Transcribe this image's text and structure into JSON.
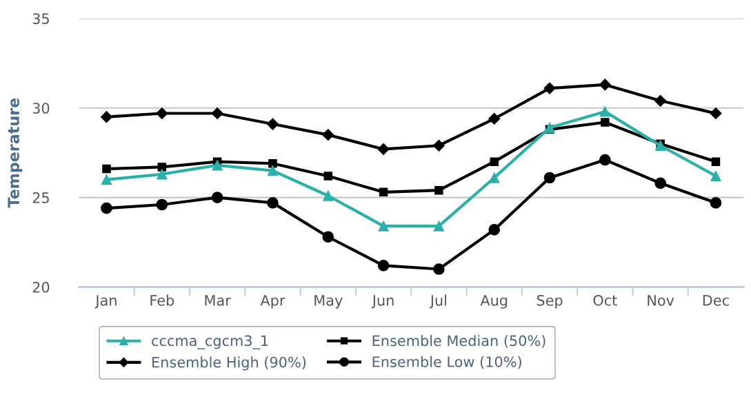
{
  "chart_data": {
    "type": "line",
    "ylabel": "Temperature",
    "categories": [
      "Jan",
      "Feb",
      "Mar",
      "Apr",
      "May",
      "Jun",
      "Jul",
      "Aug",
      "Sep",
      "Oct",
      "Nov",
      "Dec"
    ],
    "series": [
      {
        "name": "cccma_cgcm3_1",
        "color": "#2ab0a8",
        "marker": "triangle",
        "values": [
          26.0,
          26.3,
          26.8,
          26.5,
          25.1,
          23.4,
          23.4,
          26.1,
          28.9,
          29.8,
          27.9,
          26.2
        ]
      },
      {
        "name": "Ensemble Median (50%)",
        "color": "#000000",
        "marker": "square",
        "values": [
          26.6,
          26.7,
          27.0,
          26.9,
          26.2,
          25.3,
          25.4,
          27.0,
          28.8,
          29.2,
          28.0,
          27.0
        ]
      },
      {
        "name": "Ensemble High (90%)",
        "color": "#000000",
        "marker": "diamond",
        "values": [
          29.5,
          29.7,
          29.7,
          29.1,
          28.5,
          27.7,
          27.9,
          29.4,
          31.1,
          31.3,
          30.4,
          29.7
        ]
      },
      {
        "name": "Ensemble Low (10%)",
        "color": "#000000",
        "marker": "circle",
        "values": [
          24.4,
          24.6,
          25.0,
          24.7,
          22.8,
          21.2,
          21.0,
          23.2,
          26.1,
          27.1,
          25.8,
          24.7
        ]
      }
    ],
    "ylim": [
      20,
      35
    ],
    "yticks": [
      20,
      25,
      30,
      35
    ],
    "grid": "y",
    "legend": "bottom",
    "line_style": "solid"
  }
}
